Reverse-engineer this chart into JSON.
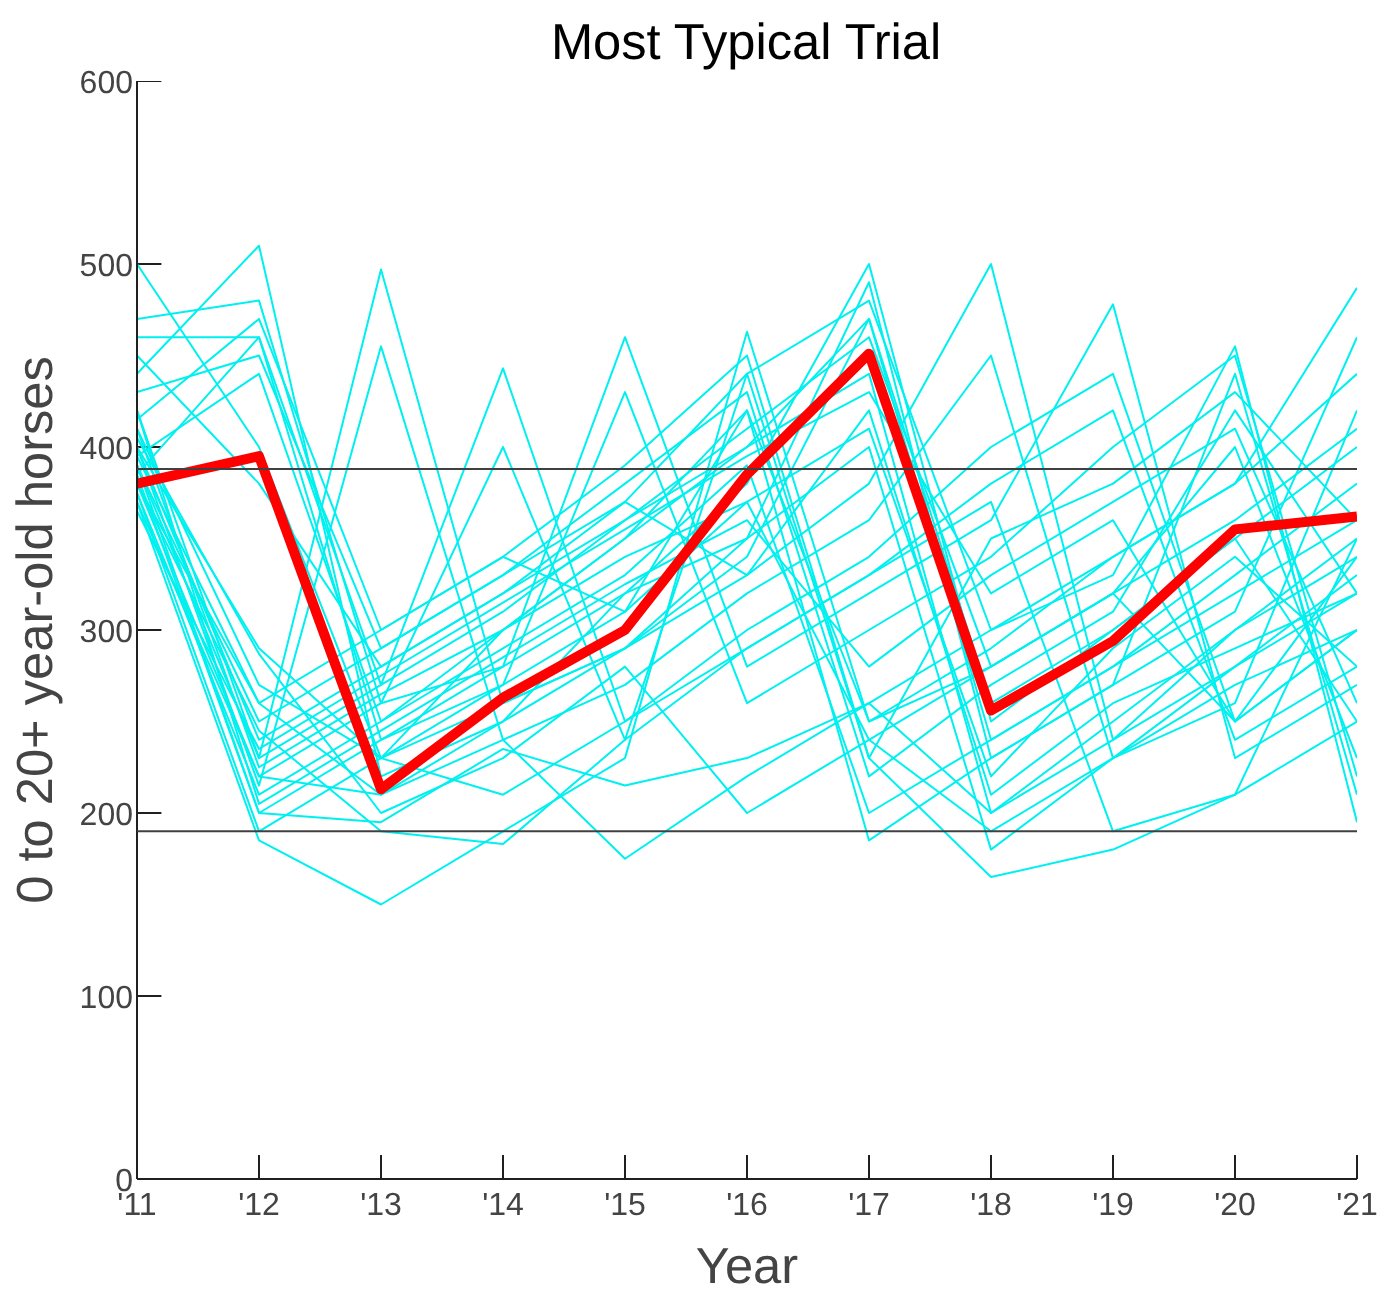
{
  "chart_data": {
    "type": "line",
    "title": "Most Typical Trial",
    "xlabel": "Year",
    "ylabel": "0 to 20+ year-old horses",
    "x": [
      2011,
      2012,
      2013,
      2014,
      2015,
      2016,
      2017,
      2018,
      2019,
      2020,
      2021
    ],
    "xlim": [
      2011,
      2021
    ],
    "xticks": [
      {
        "value": 2011,
        "label": "'11"
      },
      {
        "value": 2012,
        "label": "'12"
      },
      {
        "value": 2013,
        "label": "'13"
      },
      {
        "value": 2014,
        "label": "'14"
      },
      {
        "value": 2015,
        "label": "'15"
      },
      {
        "value": 2016,
        "label": "'16"
      },
      {
        "value": 2017,
        "label": "'17"
      },
      {
        "value": 2018,
        "label": "'18"
      },
      {
        "value": 2019,
        "label": "'19"
      },
      {
        "value": 2020,
        "label": "'20"
      },
      {
        "value": 2021,
        "label": "'21"
      }
    ],
    "ylim": [
      0,
      600
    ],
    "yticks": [
      0,
      100,
      200,
      300,
      400,
      500,
      600
    ],
    "grid": false,
    "marker": "none",
    "line_style": "solid",
    "ref_lines": [
      {
        "axis": "y",
        "value": 388,
        "color": "#404040"
      },
      {
        "axis": "y",
        "value": 190,
        "color": "#404040"
      }
    ],
    "series": [
      {
        "color": "#00f0f0",
        "values": [
          500,
          400,
          230,
          260,
          290,
          340,
          470,
          240,
          280,
          330,
          380
        ]
      },
      {
        "color": "#00f0f0",
        "values": [
          470,
          480,
          260,
          280,
          320,
          380,
          500,
          250,
          300,
          350,
          250
        ]
      },
      {
        "color": "#00f0f0",
        "values": [
          460,
          460,
          240,
          270,
          310,
          420,
          250,
          280,
          320,
          400,
          230
        ]
      },
      {
        "color": "#00f0f0",
        "values": [
          440,
          510,
          220,
          250,
          320,
          350,
          490,
          230,
          270,
          440,
          210
        ]
      },
      {
        "color": "#00f0f0",
        "values": [
          420,
          230,
          497,
          260,
          290,
          330,
          380,
          500,
          240,
          300,
          350
        ]
      },
      {
        "color": "#00f0f0",
        "values": [
          400,
          215,
          455,
          240,
          270,
          320,
          360,
          450,
          230,
          280,
          330
        ]
      },
      {
        "color": "#00f0f0",
        "values": [
          390,
          230,
          270,
          443,
          250,
          300,
          340,
          400,
          440,
          250,
          300
        ]
      },
      {
        "color": "#00f0f0",
        "values": [
          380,
          220,
          260,
          400,
          240,
          290,
          330,
          380,
          420,
          240,
          280
        ]
      },
      {
        "color": "#00f0f0",
        "values": [
          385,
          200,
          240,
          280,
          460,
          280,
          320,
          360,
          478,
          230,
          270
        ]
      },
      {
        "color": "#00f0f0",
        "values": [
          375,
          190,
          230,
          270,
          430,
          260,
          300,
          340,
          400,
          450,
          220
        ]
      },
      {
        "color": "#00f0f0",
        "values": [
          370,
          185,
          150,
          190,
          230,
          463,
          250,
          290,
          340,
          380,
          487
        ]
      },
      {
        "color": "#00f0f0",
        "values": [
          380,
          245,
          190,
          183,
          240,
          440,
          230,
          165,
          180,
          210,
          250
        ]
      },
      {
        "color": "#00f0f0",
        "values": [
          395,
          260,
          210,
          240,
          175,
          220,
          260,
          300,
          330,
          455,
          195
        ]
      },
      {
        "color": "#00f0f0",
        "values": [
          405,
          287,
          200,
          230,
          280,
          200,
          240,
          190,
          230,
          260,
          420
        ]
      },
      {
        "color": "#00f0f0",
        "values": [
          410,
          270,
          230,
          300,
          350,
          420,
          185,
          230,
          270,
          310,
          460
        ]
      },
      {
        "color": "#00f0f0",
        "values": [
          450,
          380,
          280,
          320,
          370,
          440,
          480,
          300,
          340,
          380,
          440
        ]
      },
      {
        "color": "#00f0f0",
        "values": [
          430,
          450,
          290,
          330,
          380,
          430,
          220,
          270,
          310,
          420,
          320
        ]
      },
      {
        "color": "#00f0f0",
        "values": [
          415,
          470,
          300,
          340,
          390,
          450,
          230,
          350,
          380,
          430,
          360
        ]
      },
      {
        "color": "#00f0f0",
        "values": [
          395,
          440,
          250,
          300,
          350,
          400,
          470,
          260,
          300,
          350,
          400
        ]
      },
      {
        "color": "#00f0f0",
        "values": [
          385,
          460,
          270,
          310,
          360,
          410,
          460,
          280,
          320,
          360,
          410
        ]
      },
      {
        "color": "#00f0f0",
        "values": [
          400,
          240,
          280,
          320,
          360,
          400,
          440,
          200,
          250,
          300,
          340
        ]
      },
      {
        "color": "#00f0f0",
        "values": [
          390,
          250,
          290,
          330,
          370,
          330,
          420,
          210,
          260,
          290,
          320
        ]
      },
      {
        "color": "#00f0f0",
        "values": [
          380,
          260,
          300,
          340,
          310,
          370,
          410,
          220,
          290,
          340,
          280
        ]
      },
      {
        "color": "#00f0f0",
        "values": [
          375,
          210,
          250,
          290,
          330,
          390,
          200,
          240,
          280,
          320,
          360
        ]
      },
      {
        "color": "#00f0f0",
        "values": [
          410,
          225,
          265,
          300,
          340,
          370,
          240,
          280,
          320,
          250,
          300
        ]
      },
      {
        "color": "#00f0f0",
        "values": [
          420,
          205,
          245,
          285,
          325,
          360,
          280,
          330,
          370,
          410,
          260
        ]
      },
      {
        "color": "#00f0f0",
        "values": [
          365,
          235,
          275,
          315,
          355,
          395,
          430,
          320,
          360,
          250,
          340
        ]
      },
      {
        "color": "#00f0f0",
        "values": [
          400,
          290,
          230,
          210,
          250,
          290,
          330,
          370,
          190,
          210,
          350
        ]
      },
      {
        "color": "#00f0f0",
        "values": [
          390,
          200,
          195,
          235,
          215,
          230,
          260,
          200,
          240,
          280,
          320
        ]
      },
      {
        "color": "#00f0f0",
        "values": [
          370,
          220,
          210,
          250,
          290,
          350,
          400,
          180,
          230,
          270,
          300
        ]
      },
      {
        "color": "#ff0000",
        "values": [
          380,
          395,
          213,
          263,
          300,
          385,
          451,
          256,
          294,
          355,
          362
        ]
      }
    ]
  }
}
